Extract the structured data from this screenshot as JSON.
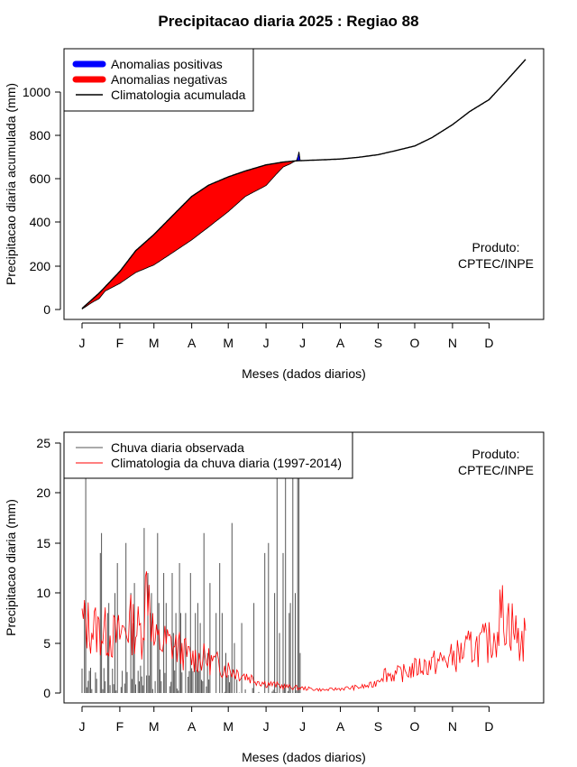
{
  "title": "Precipitacao diaria 2025 : Regiao 88",
  "colors": {
    "positive": "#0000ff",
    "negative": "#ff0000",
    "climatology": "#000000",
    "observed": "#555555",
    "daily_clim": "#ff0000"
  },
  "chart_data": [
    {
      "type": "area",
      "name": "accumulated",
      "xlabel": "Meses (dados diarios)",
      "ylabel": "Precipitacao diaria acumulada (mm)",
      "ylim": [
        -40,
        1170
      ],
      "yticks": [
        "0",
        "200",
        "400",
        "600",
        "800",
        "1000"
      ],
      "month_labels": [
        "J",
        "F",
        "M",
        "A",
        "M",
        "J",
        "J",
        "A",
        "S",
        "O",
        "N",
        "D"
      ],
      "legend": {
        "position": "top-left",
        "entries": [
          "Anomalias positivas",
          "Anomalias negativas",
          "Climatologia acumulada"
        ]
      },
      "annotation": [
        "Produto:",
        "CPTEC/INPE"
      ],
      "grid": false,
      "climatology_curve": {
        "day": [
          1,
          15,
          32,
          45,
          60,
          75,
          91,
          105,
          121,
          135,
          152,
          166,
          175,
          182,
          197,
          213,
          228,
          244,
          258,
          274,
          288,
          305,
          319,
          335,
          349,
          365
        ],
        "value": [
          5,
          75,
          175,
          270,
          345,
          430,
          520,
          572,
          610,
          637,
          665,
          678,
          683,
          685,
          688,
          692,
          700,
          712,
          730,
          752,
          790,
          850,
          910,
          965,
          1050,
          1150
        ]
      },
      "observed_curve": {
        "day": [
          1,
          10,
          15,
          20,
          32,
          45,
          60,
          75,
          91,
          105,
          121,
          135,
          152,
          160,
          166,
          172,
          175,
          177,
          178,
          179,
          180
        ],
        "value": [
          2,
          35,
          50,
          85,
          120,
          170,
          205,
          260,
          320,
          380,
          450,
          520,
          570,
          620,
          655,
          670,
          680,
          685,
          700,
          725,
          688
        ]
      }
    },
    {
      "type": "bar",
      "name": "daily",
      "xlabel": "Meses (dados diarios)",
      "ylabel": "Precipitacao diaria (mm)",
      "ylim": [
        -1,
        26
      ],
      "yticks": [
        "0",
        "5",
        "10",
        "15",
        "20",
        "25"
      ],
      "month_labels": [
        "J",
        "F",
        "M",
        "A",
        "M",
        "J",
        "J",
        "A",
        "S",
        "O",
        "N",
        "D"
      ],
      "legend": {
        "position": "top-left",
        "entries": [
          "Chuva diaria observada",
          "Climatologia da chuva diaria (1997-2014)"
        ]
      },
      "annotation": [
        "Produto:",
        "CPTEC/INPE"
      ],
      "grid": false,
      "observed_days_shown": 180,
      "observed_peaks": {
        "day": [
          3,
          4,
          16,
          17,
          22,
          23,
          28,
          30,
          37,
          41,
          43,
          44,
          52,
          55,
          57,
          58,
          63,
          64,
          68,
          70,
          75,
          76,
          78,
          81,
          82,
          86,
          90,
          94,
          96,
          98,
          101,
          104,
          106,
          111,
          114,
          116,
          119,
          124,
          126,
          132,
          142,
          151,
          154,
          159,
          161,
          163,
          166,
          168,
          171,
          172,
          174,
          176,
          178,
          179,
          180
        ],
        "value": [
          9,
          25,
          14,
          16,
          8,
          9,
          10,
          13,
          15,
          10,
          7,
          11,
          16.5,
          12,
          8,
          10,
          16,
          9,
          12,
          9,
          12,
          6,
          8,
          13,
          8,
          8,
          12,
          8,
          9,
          7,
          16,
          4,
          11,
          8,
          13,
          8,
          4,
          17,
          5,
          7,
          9,
          14,
          15,
          10,
          25,
          6,
          14,
          25,
          8,
          9,
          25,
          10,
          25,
          25,
          4
        ]
      },
      "climatology_daily": {
        "day": [
          1,
          10,
          20,
          30,
          40,
          50,
          55,
          60,
          70,
          80,
          90,
          100,
          110,
          120,
          130,
          140,
          150,
          160,
          170,
          180,
          190,
          200,
          210,
          220,
          230,
          240,
          248,
          255,
          265,
          275,
          290,
          305,
          320,
          335,
          340,
          345,
          350,
          355,
          360,
          365
        ],
        "value": [
          7,
          6.5,
          6,
          5.5,
          7,
          6,
          12,
          5,
          5,
          4.5,
          3.5,
          3.5,
          3,
          2.5,
          2,
          1.5,
          1,
          0.8,
          0.6,
          0.5,
          0.4,
          0.3,
          0.4,
          0.5,
          0.6,
          0.8,
          2,
          1.8,
          2,
          2.5,
          3,
          3.5,
          4.5,
          5,
          6,
          8,
          7.5,
          6.5,
          5,
          5.5
        ]
      }
    }
  ]
}
